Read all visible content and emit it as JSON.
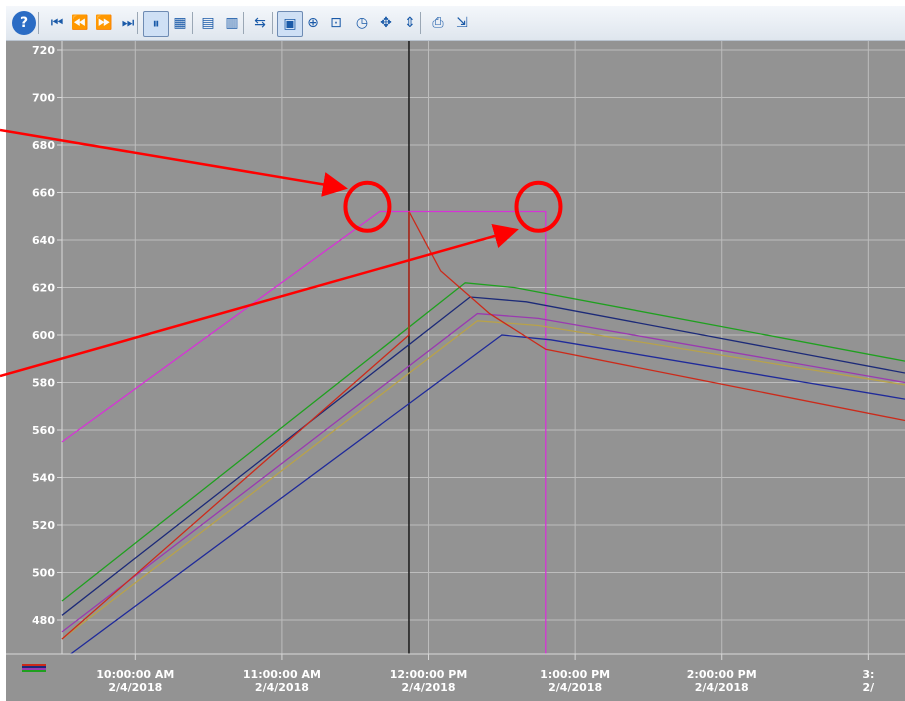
{
  "toolbar": {
    "buttons": [
      {
        "name": "help-button",
        "icon": "help-icon",
        "glyph": "?"
      },
      {
        "name": "first-button",
        "icon": "skip-first-icon",
        "glyph": "⏮"
      },
      {
        "name": "back-button",
        "icon": "rewind-icon",
        "glyph": "⏪"
      },
      {
        "name": "forward-button",
        "icon": "fast-forward-icon",
        "glyph": "⏩"
      },
      {
        "name": "last-button",
        "icon": "skip-last-icon",
        "glyph": "⏭"
      },
      {
        "name": "pause-button",
        "icon": "pause-icon",
        "glyph": "⏸"
      },
      {
        "name": "grid-settings-button",
        "icon": "grid-icon",
        "glyph": "▦"
      },
      {
        "name": "prev-trend-button",
        "icon": "trend-left-icon",
        "glyph": "▤"
      },
      {
        "name": "next-trend-button",
        "icon": "trend-right-icon",
        "glyph": "▥"
      },
      {
        "name": "ruler-button",
        "icon": "ruler-icon",
        "glyph": "⇆"
      },
      {
        "name": "zoom-area-button",
        "icon": "zoom-area-icon",
        "glyph": "▣"
      },
      {
        "name": "zoom-in-button",
        "icon": "zoom-in-icon",
        "glyph": "⊕"
      },
      {
        "name": "original-view-button",
        "icon": "reset-view-icon",
        "glyph": "⊡"
      },
      {
        "name": "time-range-button",
        "icon": "clock-icon",
        "glyph": "◷"
      },
      {
        "name": "move-button",
        "icon": "move-icon",
        "glyph": "✥"
      },
      {
        "name": "axis-scale-button",
        "icon": "value-axis-icon",
        "glyph": "⇕"
      },
      {
        "name": "print-button",
        "icon": "print-icon",
        "glyph": "⎙"
      },
      {
        "name": "export-button",
        "icon": "export-icon",
        "glyph": "⇲"
      }
    ]
  },
  "chart_data": {
    "type": "line",
    "background": "#939393",
    "grid": true,
    "ylim": [
      460,
      720
    ],
    "yticks": [
      480,
      500,
      520,
      540,
      560,
      580,
      600,
      620,
      640,
      660,
      680,
      700,
      720
    ],
    "xlim": [
      "09:30",
      "15:15"
    ],
    "xticks": [
      {
        "time": "10:00",
        "label": "10:00:00 AM",
        "date": "2/4/2018"
      },
      {
        "time": "11:00",
        "label": "11:00:00 AM",
        "date": "2/4/2018"
      },
      {
        "time": "12:00",
        "label": "12:00:00 PM",
        "date": "2/4/2018"
      },
      {
        "time": "13:00",
        "label": "1:00:00 PM",
        "date": "2/4/2018"
      },
      {
        "time": "14:00",
        "label": "2:00:00 PM",
        "date": "2/4/2018"
      },
      {
        "time": "15:00",
        "label": "3:",
        "date": "2/"
      }
    ],
    "ruler_time": "11:52",
    "series": [
      {
        "color": "#d633d6",
        "points": [
          [
            "09:30",
            555
          ],
          [
            "11:40",
            652
          ],
          [
            "12:48",
            652
          ],
          [
            "12:48",
            460
          ]
        ]
      },
      {
        "color": "#1fa01f",
        "points": [
          [
            "09:30",
            488
          ],
          [
            "12:15",
            622
          ],
          [
            "12:35",
            620
          ],
          [
            "15:15",
            589
          ]
        ]
      },
      {
        "color": "#1c2a78",
        "points": [
          [
            "09:30",
            482
          ],
          [
            "12:17",
            616
          ],
          [
            "12:40",
            614
          ],
          [
            "15:15",
            584
          ]
        ]
      },
      {
        "color": "#9a3ab0",
        "points": [
          [
            "09:30",
            475
          ],
          [
            "12:20",
            609
          ],
          [
            "12:45",
            607
          ],
          [
            "15:15",
            580
          ]
        ]
      },
      {
        "color": "#b8a24a",
        "points": [
          [
            "09:30",
            472
          ],
          [
            "12:20",
            606
          ],
          [
            "12:45",
            604
          ],
          [
            "15:15",
            579
          ]
        ]
      },
      {
        "color": "#1f2a9a",
        "points": [
          [
            "09:30",
            463
          ],
          [
            "12:30",
            600
          ],
          [
            "12:50",
            598
          ],
          [
            "15:15",
            573
          ]
        ]
      },
      {
        "color": "#cc2a1a",
        "points": [
          [
            "09:30",
            472
          ],
          [
            "11:52",
            600
          ],
          [
            "11:52",
            652
          ],
          [
            "12:05",
            627
          ],
          [
            "12:25",
            609
          ],
          [
            "12:48",
            594
          ],
          [
            "15:15",
            564
          ]
        ]
      }
    ],
    "annotations": {
      "color": "#ff0000",
      "circles": [
        {
          "time": "11:35",
          "value": 654
        },
        {
          "time": "12:45",
          "value": 654
        }
      ],
      "arrows": [
        {
          "to_time": "11:25",
          "to_value": 662
        },
        {
          "to_time": "12:35",
          "to_value": 644
        }
      ]
    }
  },
  "legend": {
    "colors": [
      "#cc2a1a",
      "#1c2a78",
      "#9a3ab0",
      "#1fa01f"
    ]
  }
}
